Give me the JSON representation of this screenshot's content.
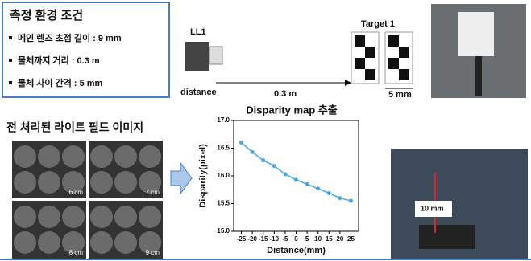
{
  "conditions": {
    "title": "측정 환경 조건",
    "items": [
      "메인 렌즈 초점 길이 : 9 mm",
      "물체까지 거리 : 0.3 m",
      "물체 사이 간격 : 5 mm"
    ]
  },
  "setup": {
    "lens": "LL1",
    "distance_label": "distance",
    "distance": "0.3 m",
    "target": "Target 1",
    "gap": "5 mm"
  },
  "images": {
    "title": "전 처리된 라이트 필드 이미지",
    "labels": [
      "6 cm",
      "7 cm",
      "8 cm",
      "9 cm"
    ]
  },
  "photo": {
    "label": "10 mm"
  },
  "chart_data": {
    "type": "line",
    "title": "Disparity map 추출",
    "x_label": "Distance(mm)",
    "y_label": "Disparity(pixel)",
    "x": [
      -25,
      -20,
      -15,
      -10,
      -5,
      0,
      5,
      10,
      15,
      20,
      25
    ],
    "values": [
      16.6,
      16.43,
      16.28,
      16.18,
      16.03,
      15.93,
      15.85,
      15.77,
      15.69,
      15.6,
      15.55
    ],
    "color": "#4aa8e0",
    "xlim": [
      -28.5,
      28.5
    ],
    "xticks": [
      -25,
      -20,
      -15,
      -10,
      -5,
      0,
      5,
      10,
      15,
      20,
      25
    ],
    "ylim": [
      15,
      17
    ],
    "yticks": [
      {
        "value": 15,
        "label": "15.0"
      },
      {
        "value": 15.5,
        "label": "15.5"
      },
      {
        "value": 16,
        "label": "16.0"
      },
      {
        "value": 16.5,
        "label": "16.5"
      },
      {
        "value": 17,
        "label": "17.0"
      }
    ]
  }
}
